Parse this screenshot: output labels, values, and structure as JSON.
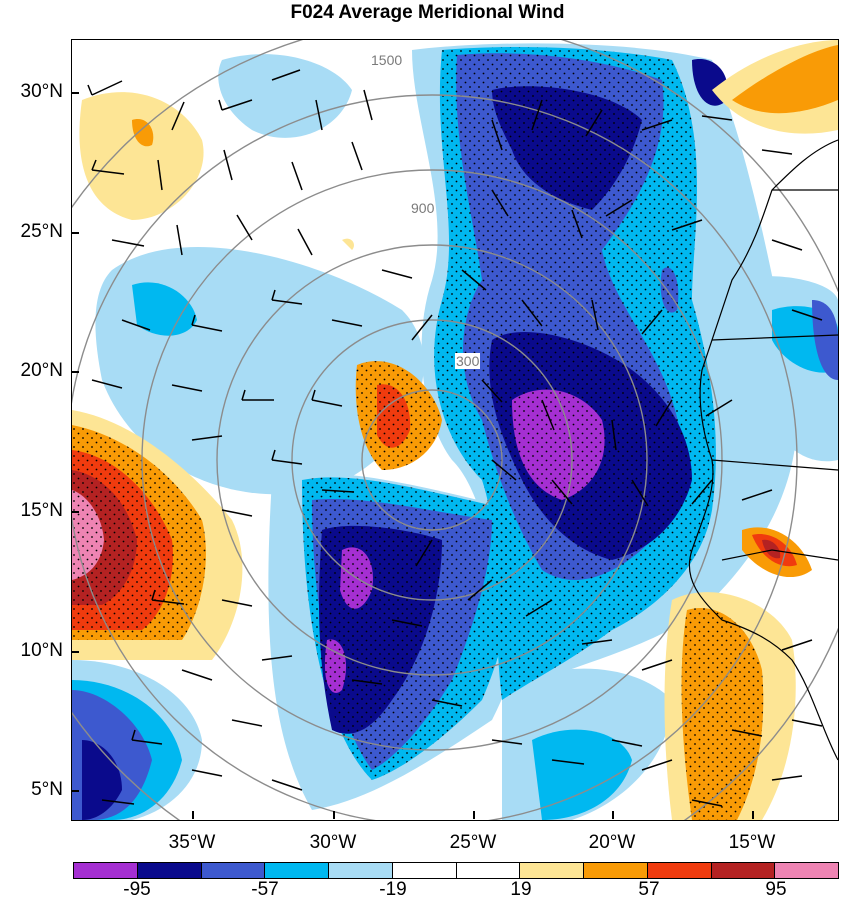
{
  "title": "F024 Average Meridional Wind",
  "map": {
    "lat_labels": [
      "30°N",
      "25°N",
      "20°N",
      "15°N",
      "10°N",
      "5°N"
    ],
    "lon_labels": [
      "35°W",
      "30°W",
      "25°W",
      "20°W",
      "15°W"
    ],
    "range_ring_labels": [
      "300",
      "900",
      "1500"
    ]
  },
  "colorbar": {
    "colors": [
      "#a52fd2",
      "#0a0a8c",
      "#3d59cf",
      "#00b8f0",
      "#a8dcf5",
      "#ffffff",
      "#ffffff",
      "#fde595",
      "#f99b06",
      "#f03b0e",
      "#b42222",
      "#ee84b3"
    ],
    "labels": [
      "-95",
      "-57",
      "-19",
      "19",
      "57",
      "95"
    ]
  }
}
